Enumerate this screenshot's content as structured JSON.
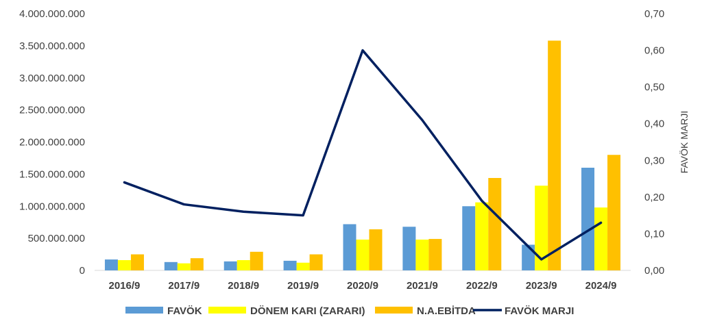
{
  "chart_data": {
    "type": "bar",
    "categories": [
      "2016/9",
      "2017/9",
      "2018/9",
      "2019/9",
      "2020/9",
      "2021/9",
      "2022/9",
      "2023/9",
      "2024/9"
    ],
    "series": [
      {
        "name": "FAVÖK",
        "type": "bar",
        "axis": "left",
        "color": "#5B9BD5",
        "values": [
          170000000,
          130000000,
          140000000,
          150000000,
          720000000,
          680000000,
          1000000000,
          400000000,
          1600000000
        ]
      },
      {
        "name": "DÖNEM KARI (ZARARI)",
        "type": "bar",
        "axis": "left",
        "color": "#FFFF00",
        "values": [
          160000000,
          110000000,
          160000000,
          120000000,
          480000000,
          480000000,
          1060000000,
          1320000000,
          980000000
        ]
      },
      {
        "name": "N.A.EBİTDA",
        "type": "bar",
        "axis": "left",
        "color": "#FFC000",
        "values": [
          250000000,
          190000000,
          290000000,
          250000000,
          640000000,
          490000000,
          1440000000,
          3580000000,
          1800000000
        ]
      },
      {
        "name": "FAVÖK MARJI",
        "type": "line",
        "axis": "right",
        "color": "#002060",
        "values": [
          0.24,
          0.18,
          0.16,
          0.15,
          0.6,
          0.41,
          0.19,
          0.03,
          0.13
        ]
      }
    ],
    "y_left": {
      "range": [
        0,
        4000000000
      ],
      "ticks": [
        "0",
        "500.000.000",
        "1.000.000.000",
        "1.500.000.000",
        "2.000.000.000",
        "2.500.000.000",
        "3.000.000.000",
        "3.500.000.000",
        "4.000.000.000"
      ]
    },
    "y_right": {
      "label": "FAVÖK MARJI",
      "range": [
        0,
        0.7
      ],
      "ticks": [
        "0,00",
        "0,10",
        "0,20",
        "0,30",
        "0,40",
        "0,50",
        "0,60",
        "0,70"
      ]
    },
    "grid": false,
    "legend": "bottom"
  }
}
